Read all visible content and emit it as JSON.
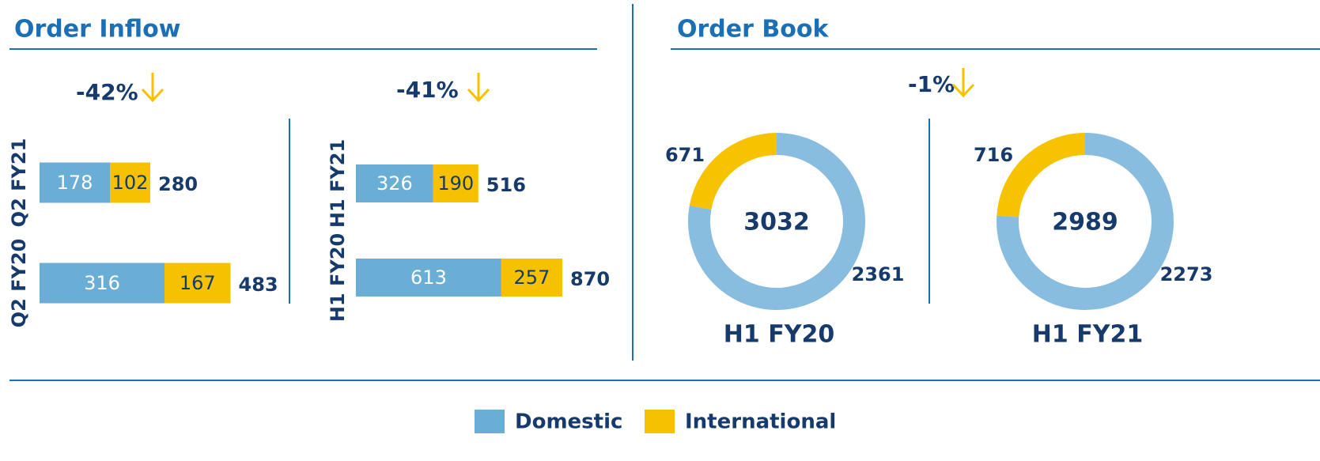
{
  "order_inflow": {
    "title": "Order Inflow"
  },
  "order_book": {
    "title": "Order Book",
    "change": "-1%"
  },
  "chart_data": [
    {
      "type": "bar",
      "orientation": "horizontal",
      "stacked": true,
      "change": "-42%",
      "categories": [
        "Q2 FY21",
        "Q2 FY20"
      ],
      "series": [
        {
          "name": "Domestic",
          "color": "#6aaed6",
          "values": [
            178,
            316
          ]
        },
        {
          "name": "International",
          "color": "#f6c100",
          "values": [
            102,
            167
          ]
        }
      ],
      "totals": [
        280,
        483
      ],
      "xlim": [
        0,
        600
      ]
    },
    {
      "type": "bar",
      "orientation": "horizontal",
      "stacked": true,
      "change": "-41%",
      "categories": [
        "H1 FY21",
        "H1 FY20"
      ],
      "series": [
        {
          "name": "Domestic",
          "color": "#6aaed6",
          "values": [
            326,
            613
          ]
        },
        {
          "name": "International",
          "color": "#f6c100",
          "values": [
            190,
            257
          ]
        }
      ],
      "totals": [
        516,
        870
      ],
      "xlim": [
        0,
        1000
      ]
    },
    {
      "type": "donut",
      "label": "H1 FY20",
      "categories": [
        "Domestic",
        "International"
      ],
      "values": [
        2361,
        671
      ],
      "colors": [
        "#88bde0",
        "#f7c200"
      ],
      "total": 3032
    },
    {
      "type": "donut",
      "label": "H1 FY21",
      "categories": [
        "Domestic",
        "International"
      ],
      "values": [
        2273,
        716
      ],
      "colors": [
        "#88bde0",
        "#f7c200"
      ],
      "total": 2989
    }
  ]
}
